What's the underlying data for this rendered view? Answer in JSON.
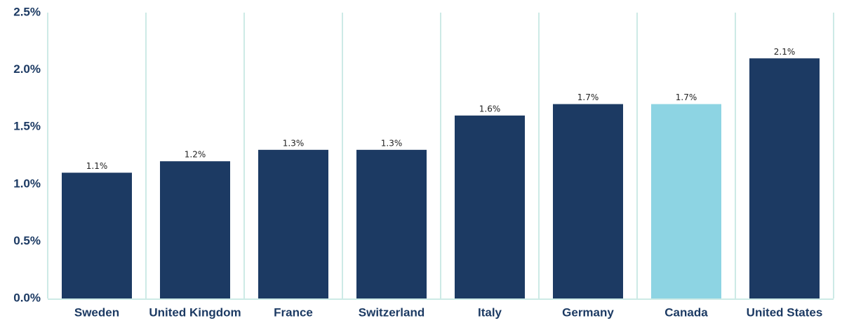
{
  "chart_data": {
    "type": "bar",
    "categories": [
      "Sweden",
      "United Kingdom",
      "France",
      "Switzerland",
      "Italy",
      "Germany",
      "Canada",
      "United States"
    ],
    "values": [
      1.1,
      1.2,
      1.3,
      1.3,
      1.6,
      1.7,
      1.7,
      2.1
    ],
    "value_labels": [
      "1.1%",
      "1.2%",
      "1.3%",
      "1.3%",
      "1.6%",
      "1.7%",
      "1.7%",
      "2.1%"
    ],
    "colors": [
      "#1c3a63",
      "#1c3a63",
      "#1c3a63",
      "#1c3a63",
      "#1c3a63",
      "#1c3a63",
      "#8dd4e3",
      "#1c3a63"
    ],
    "ylim": [
      0,
      2.5
    ],
    "yticks": [
      {
        "value": 0,
        "label": "0.0%"
      },
      {
        "value": 0.5,
        "label": "0.5%"
      },
      {
        "value": 1,
        "label": "1.0%"
      },
      {
        "value": 1.5,
        "label": "1.5%"
      },
      {
        "value": 2,
        "label": "2.0%"
      },
      {
        "value": 2.5,
        "label": "2.5%"
      }
    ]
  }
}
